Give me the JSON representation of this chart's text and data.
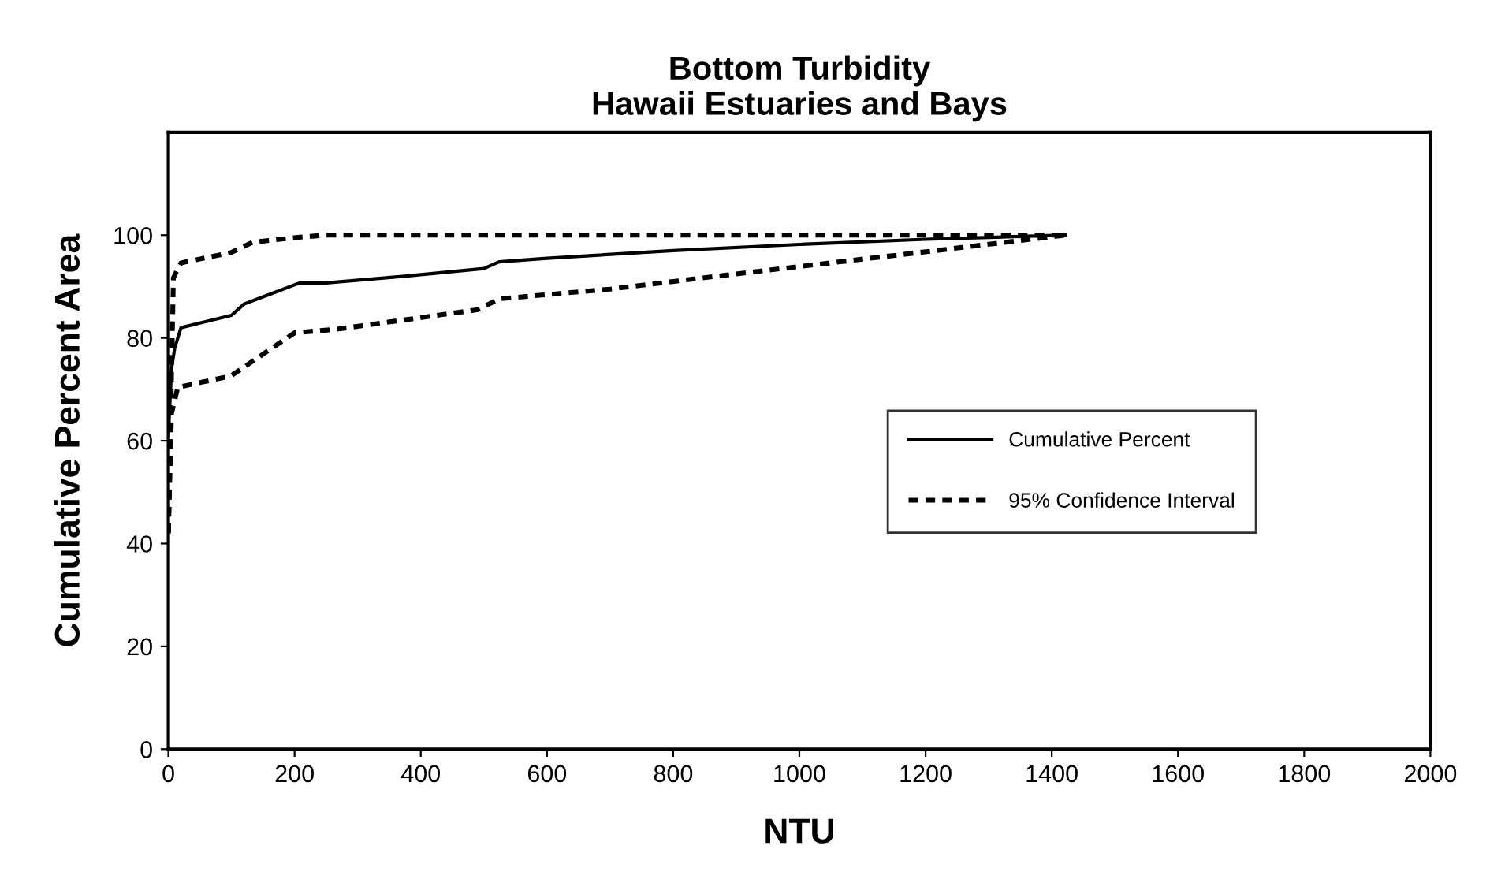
{
  "chart_data": {
    "type": "line",
    "title": "Bottom Turbidity\nHawaii Estuaries and Bays",
    "xlabel": "NTU",
    "ylabel": "Cumulative Percent Area",
    "xlim": [
      0,
      2000
    ],
    "xticks": [
      0,
      200,
      400,
      600,
      800,
      1000,
      1200,
      1400,
      1600,
      1800,
      2000
    ],
    "ylim": [
      0,
      120
    ],
    "yticks": [
      0,
      20,
      40,
      60,
      80,
      100
    ],
    "grid": false,
    "legend": "right",
    "marker": "none",
    "series": [
      {
        "name": "Cumulative Percent",
        "color": "#000000",
        "line_style": "solid",
        "x": [
          0,
          5,
          10,
          20,
          100,
          120,
          150,
          208,
          250,
          374,
          500,
          524,
          600,
          800,
          1000,
          1200,
          1422
        ],
        "values": [
          61,
          74,
          78,
          82,
          84.4,
          86.6,
          88,
          90.7,
          90.7,
          92,
          93.5,
          94.8,
          95.5,
          97,
          98.2,
          99.2,
          100
        ]
      },
      {
        "name": "95% Confidence Interval",
        "color": "#000000",
        "line_style": "dotted",
        "x": [
          0,
          8,
          20,
          99,
          133,
          208,
          250,
          1422
        ],
        "values": [
          42,
          91.7,
          94.6,
          96.6,
          98.6,
          99.6,
          100,
          100
        ]
      },
      {
        "color": "#000000",
        "line_style": "dotted",
        "x": [
          0,
          5,
          15,
          99,
          200,
          267,
          491,
          524,
          700,
          882,
          1182,
          1422
        ],
        "values": [
          42,
          65.3,
          70.4,
          72.6,
          81,
          81.7,
          85.5,
          87.6,
          89.5,
          92.2,
          96.5,
          100
        ]
      }
    ]
  }
}
